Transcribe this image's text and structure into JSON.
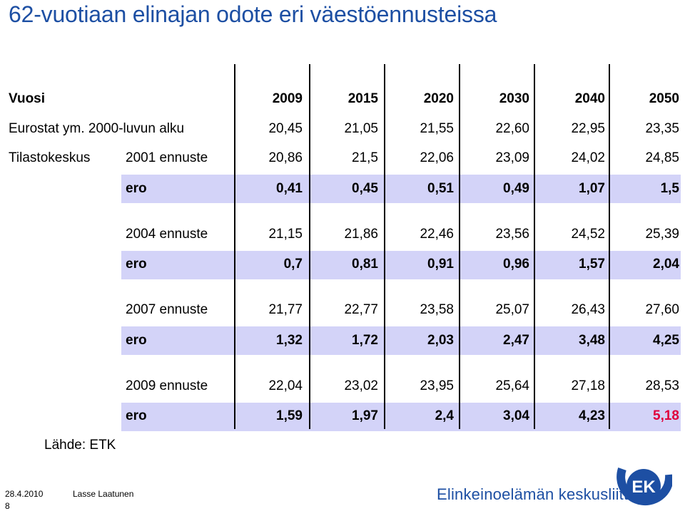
{
  "title": "62-vuotiaan elinajan odote eri väestöennusteissa",
  "table": {
    "header_label": "Vuosi",
    "years": [
      "2009",
      "2015",
      "2020",
      "2030",
      "2040",
      "2050"
    ],
    "eurostat": {
      "label": "Eurostat ym. 2000-luvun alku",
      "values": [
        "20,45",
        "21,05",
        "21,55",
        "22,60",
        "22,95",
        "23,35"
      ]
    },
    "tilastokeskus_label": "Tilastokeskus",
    "forecasts": [
      {
        "label": "2001 ennuste",
        "values": [
          "20,86",
          "21,5",
          "22,06",
          "23,09",
          "24,02",
          "24,85"
        ],
        "diff_label": "ero",
        "diff_values": [
          "0,41",
          "0,45",
          "0,51",
          "0,49",
          "1,07",
          "1,5"
        ]
      },
      {
        "label": "2004 ennuste",
        "values": [
          "21,15",
          "21,86",
          "22,46",
          "23,56",
          "24,52",
          "25,39"
        ],
        "diff_label": "ero",
        "diff_values": [
          "0,7",
          "0,81",
          "0,91",
          "0,96",
          "1,57",
          "2,04"
        ]
      },
      {
        "label": "2007 ennuste",
        "values": [
          "21,77",
          "22,77",
          "23,58",
          "25,07",
          "26,43",
          "27,60"
        ],
        "diff_label": "ero",
        "diff_values": [
          "1,32",
          "1,72",
          "2,03",
          "2,47",
          "3,48",
          "4,25"
        ]
      },
      {
        "label": "2009 ennuste",
        "values": [
          "22,04",
          "23,02",
          "23,95",
          "25,64",
          "27,18",
          "28,53"
        ],
        "diff_label": "ero",
        "diff_values": [
          "1,59",
          "1,97",
          "2,4",
          "3,04",
          "4,23",
          "5,18"
        ]
      }
    ]
  },
  "source": "Lähde: ETK",
  "footer": {
    "date": "28.4.2010",
    "author": "Lasse Laatunen",
    "page": "8",
    "org_name": "Elinkeinoelämän keskusliitto",
    "logo_text": "EK"
  },
  "colors": {
    "title": "#1d4fa3",
    "band": "#d3d3f8",
    "highlight": "#e0003c",
    "logo": "#1d4fa3"
  }
}
